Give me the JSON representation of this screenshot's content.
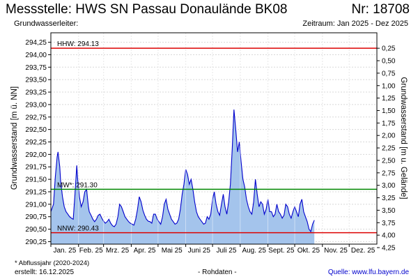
{
  "header": {
    "station": "Messstelle: HWS SN Passau Donaulände BK08",
    "nr": "Nr: 18708",
    "leiter": "Grundwasserleiter:",
    "zeitraum": "Zeitraum: Jan 2025 - Dez 2025"
  },
  "footer": {
    "note": "* Abflussjahr (2020-2024)",
    "erstellt": "erstellt:  16.12.2025",
    "rohdaten": "- Rohdaten -",
    "quelle": "Quelle:  www.lfu.bayern.de"
  },
  "chart_data": {
    "type": "area",
    "ylabel": "Grundwasserstand [m ü. NN]",
    "y2label": "Grundwasserstand [m u. Gelände]",
    "ylim": [
      290.2,
      294.44
    ],
    "yticks": [
      "294,25",
      "294,00",
      "293,75",
      "293,50",
      "293,25",
      "293,00",
      "292,75",
      "292,50",
      "292,25",
      "292,00",
      "291,75",
      "291,50",
      "291,25",
      "291,00",
      "290,75",
      "290,50",
      "290,25"
    ],
    "y2ticks": [
      "0,25",
      "0,50",
      "0,75",
      "1,00",
      "1,25",
      "1,50",
      "1,75",
      "2,00",
      "2,25",
      "2,50",
      "2,75",
      "3,00",
      "3,25",
      "3,50",
      "3,75",
      "4,00",
      "4,25"
    ],
    "months": [
      "Jan. 25",
      "Feb. 25",
      "Mrz. 25",
      "Apr. 25",
      "Mai 25",
      "Juni 25",
      "Juli 25",
      "Aug. 25",
      "Sept. 25",
      "Okt. 25",
      "Nov. 25",
      "Dez. 25"
    ],
    "ground_level": 294.38,
    "reference_lines": [
      {
        "label": "HHW: 294.13",
        "value": 294.13,
        "color": "#dd0000"
      },
      {
        "label": "MW*: 291.30",
        "value": 291.3,
        "color": "#008800"
      },
      {
        "label": "NNW: 290.43",
        "value": 290.43,
        "color": "#dd0000"
      }
    ],
    "series": [
      {
        "color": "#0000cc",
        "fill": "#a4c4ec",
        "x": [
          "2025-01-01",
          "2025-01-04",
          "2025-01-06",
          "2025-01-08",
          "2025-01-09",
          "2025-01-11",
          "2025-01-12",
          "2025-01-14",
          "2025-01-16",
          "2025-01-18",
          "2025-01-20",
          "2025-01-22",
          "2025-01-24",
          "2025-01-26",
          "2025-01-28",
          "2025-01-30",
          "2025-01-31",
          "2025-02-02",
          "2025-02-04",
          "2025-02-06",
          "2025-02-08",
          "2025-02-10",
          "2025-02-12",
          "2025-02-13",
          "2025-02-15",
          "2025-02-17",
          "2025-02-19",
          "2025-02-21",
          "2025-02-23",
          "2025-02-25",
          "2025-02-27",
          "2025-03-01",
          "2025-03-03",
          "2025-03-05",
          "2025-03-07",
          "2025-03-09",
          "2025-03-11",
          "2025-03-13",
          "2025-03-15",
          "2025-03-17",
          "2025-03-19",
          "2025-03-21",
          "2025-03-23",
          "2025-03-25",
          "2025-03-27",
          "2025-03-29",
          "2025-03-31",
          "2025-04-02",
          "2025-04-04",
          "2025-04-06",
          "2025-04-08",
          "2025-04-10",
          "2025-04-12",
          "2025-04-14",
          "2025-04-16",
          "2025-04-18",
          "2025-04-20",
          "2025-04-22",
          "2025-04-24",
          "2025-04-26",
          "2025-04-28",
          "2025-04-30",
          "2025-05-02",
          "2025-05-04",
          "2025-05-06",
          "2025-05-08",
          "2025-05-10",
          "2025-05-12",
          "2025-05-14",
          "2025-05-16",
          "2025-05-18",
          "2025-05-20",
          "2025-05-22",
          "2025-05-24",
          "2025-05-26",
          "2025-05-28",
          "2025-05-30",
          "2025-06-01",
          "2025-06-03",
          "2025-06-05",
          "2025-06-07",
          "2025-06-09",
          "2025-06-11",
          "2025-06-13",
          "2025-06-15",
          "2025-06-17",
          "2025-06-19",
          "2025-06-21",
          "2025-06-23",
          "2025-06-25",
          "2025-06-27",
          "2025-06-29",
          "2025-07-01",
          "2025-07-03",
          "2025-07-05",
          "2025-07-07",
          "2025-07-09",
          "2025-07-11",
          "2025-07-13",
          "2025-07-15",
          "2025-07-17",
          "2025-07-19",
          "2025-07-21",
          "2025-07-23",
          "2025-07-25",
          "2025-07-27",
          "2025-07-29",
          "2025-07-31",
          "2025-08-02",
          "2025-08-04",
          "2025-08-06",
          "2025-08-08",
          "2025-08-10",
          "2025-08-12",
          "2025-08-14",
          "2025-08-16",
          "2025-08-18",
          "2025-08-20",
          "2025-08-22",
          "2025-08-24",
          "2025-08-26",
          "2025-08-28",
          "2025-08-30",
          "2025-09-01",
          "2025-09-03",
          "2025-09-05",
          "2025-09-07",
          "2025-09-09",
          "2025-09-11",
          "2025-09-13",
          "2025-09-15",
          "2025-09-17",
          "2025-09-19",
          "2025-09-21",
          "2025-09-23",
          "2025-09-25",
          "2025-09-27",
          "2025-09-29",
          "2025-10-01",
          "2025-10-03",
          "2025-10-05",
          "2025-10-07",
          "2025-10-09",
          "2025-10-11",
          "2025-10-13",
          "2025-10-15",
          "2025-10-17",
          "2025-10-19",
          "2025-10-21",
          "2025-10-23"
        ],
        "y": [
          290.85,
          291.0,
          291.55,
          291.95,
          292.05,
          291.75,
          291.45,
          291.15,
          290.95,
          290.85,
          290.8,
          290.75,
          290.72,
          290.7,
          291.2,
          291.78,
          291.5,
          291.15,
          290.95,
          291.05,
          291.25,
          291.3,
          290.95,
          290.85,
          290.78,
          290.7,
          290.65,
          290.7,
          290.78,
          290.8,
          290.72,
          290.66,
          290.62,
          290.65,
          290.7,
          290.62,
          290.57,
          290.55,
          290.6,
          290.75,
          291.0,
          290.95,
          290.85,
          290.75,
          290.7,
          290.65,
          290.62,
          290.6,
          290.58,
          290.7,
          290.9,
          291.15,
          291.05,
          290.88,
          290.78,
          290.7,
          290.66,
          290.65,
          290.62,
          290.8,
          290.8,
          290.7,
          290.65,
          290.6,
          290.75,
          291.0,
          291.1,
          290.9,
          290.8,
          290.7,
          290.65,
          290.6,
          290.62,
          290.7,
          290.9,
          291.2,
          291.4,
          291.7,
          291.6,
          291.4,
          291.5,
          291.3,
          291.05,
          290.85,
          290.75,
          290.7,
          290.65,
          290.6,
          290.62,
          290.75,
          290.7,
          290.8,
          291.1,
          291.25,
          291.0,
          290.85,
          290.78,
          291.0,
          291.2,
          290.95,
          290.8,
          291.05,
          291.4,
          292.1,
          292.9,
          292.5,
          292.05,
          292.25,
          291.85,
          291.5,
          291.35,
          291.1,
          290.95,
          290.85,
          290.8,
          291.05,
          291.5,
          291.2,
          290.95,
          291.05,
          291.0,
          290.8,
          290.9,
          291.1,
          290.85,
          290.85,
          290.75,
          290.8,
          291.0,
          290.85,
          290.8,
          290.72,
          290.78,
          291.0,
          290.95,
          290.8,
          290.72,
          290.85,
          290.95,
          290.85,
          290.75,
          291.0,
          291.1,
          290.85,
          290.75,
          290.65,
          290.5,
          290.45,
          290.6,
          290.68
        ]
      }
    ]
  }
}
